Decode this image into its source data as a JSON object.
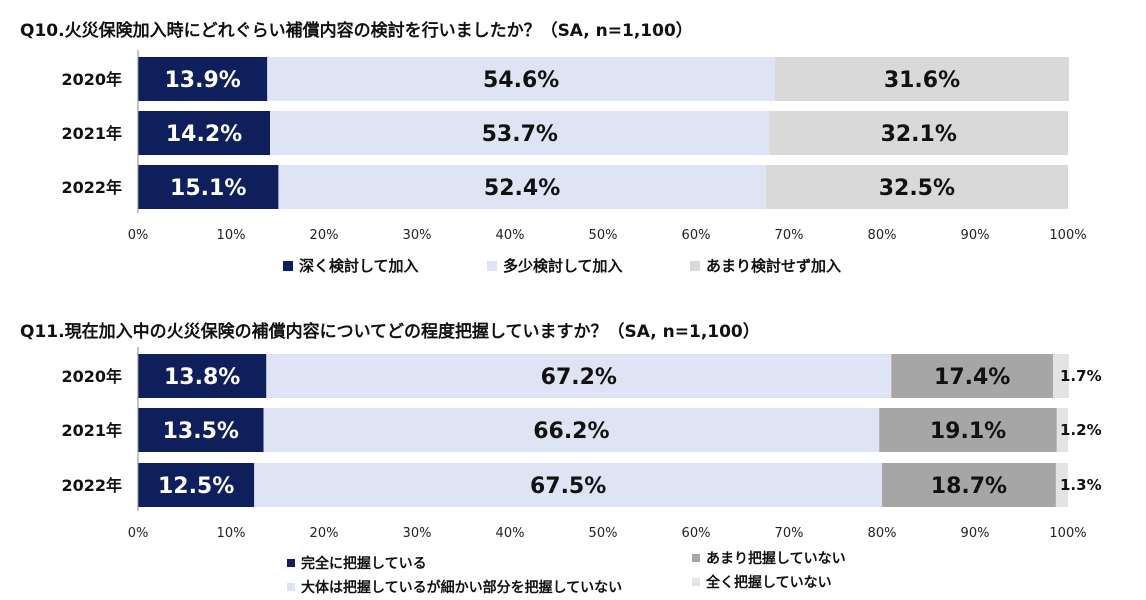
{
  "chart_data": [
    {
      "type": "bar",
      "orientation": "horizontal",
      "stacked": "percent",
      "title": "Q10.火災保険加入時にどれぐらい補償内容の検討を行いましたか？（SA, n=1,100）",
      "categories": [
        "2020年",
        "2021年",
        "2022年"
      ],
      "xticks": [
        "0%",
        "10%",
        "20%",
        "30%",
        "40%",
        "50%",
        "60%",
        "70%",
        "80%",
        "90%",
        "100%"
      ],
      "xlim": [
        0,
        100
      ],
      "legend_position": "bottom",
      "series": [
        {
          "name": "深く検討して加入",
          "color": "#0f1f5c",
          "values": [
            13.9,
            14.2,
            15.1
          ],
          "labels": [
            "13.9%",
            "14.2%",
            "15.1%"
          ]
        },
        {
          "name": "多少検討して加入",
          "color": "#dfe4f5",
          "values": [
            54.6,
            53.7,
            52.4
          ],
          "labels": [
            "54.6%",
            "53.7%",
            "52.4%"
          ]
        },
        {
          "name": "あまり検討せず加入",
          "color": "#d9d9d9",
          "values": [
            31.6,
            32.1,
            32.5
          ],
          "labels": [
            "31.6%",
            "32.1%",
            "32.5%"
          ]
        }
      ]
    },
    {
      "type": "bar",
      "orientation": "horizontal",
      "stacked": "percent",
      "title": "Q11.現在加入中の火災保険の補償内容についてどの程度把握していますか？（SA, n=1,100）",
      "categories": [
        "2020年",
        "2021年",
        "2022年"
      ],
      "xticks": [
        "0%",
        "10%",
        "20%",
        "30%",
        "40%",
        "50%",
        "60%",
        "70%",
        "80%",
        "90%",
        "100%"
      ],
      "xlim": [
        0,
        100
      ],
      "legend_position": "bottom",
      "series": [
        {
          "name": "完全に把握している",
          "color": "#0f1f5c",
          "values": [
            13.8,
            13.5,
            12.5
          ],
          "labels": [
            "13.8%",
            "13.5%",
            "12.5%"
          ]
        },
        {
          "name": "大体は把握しているが細かい部分を把握していない",
          "color": "#dfe4f5",
          "values": [
            67.2,
            66.2,
            67.5
          ],
          "labels": [
            "67.2%",
            "66.2%",
            "67.5%"
          ]
        },
        {
          "name": "あまり把握していない",
          "color": "#a6a6a6",
          "values": [
            17.4,
            19.1,
            18.7
          ],
          "labels": [
            "17.4%",
            "19.1%",
            "18.7%"
          ]
        },
        {
          "name": "全く把握していない",
          "color": "#e3e3e3",
          "values": [
            1.7,
            1.2,
            1.3
          ],
          "labels": [
            "1.7%",
            "1.2%",
            "1.3%"
          ]
        }
      ]
    }
  ]
}
